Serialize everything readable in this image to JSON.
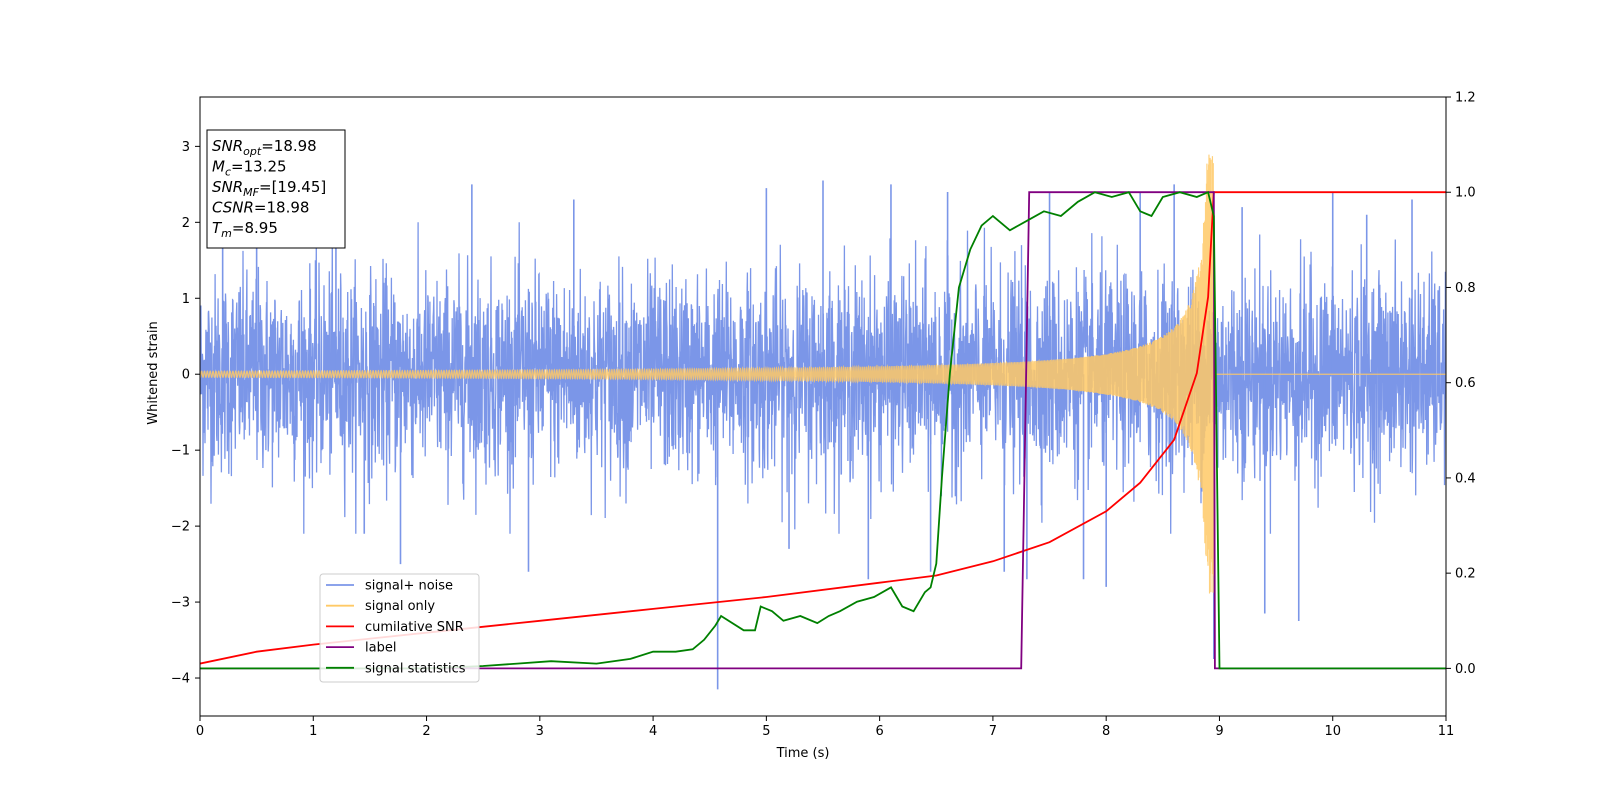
{
  "chart_data": {
    "type": "line",
    "xlabel": "Time (s)",
    "ylabel": "Whitened strain",
    "xlim": [
      0,
      11
    ],
    "ylim_left": [
      -4.5,
      3.65
    ],
    "ylim_right": [
      -0.1,
      1.2
    ],
    "x_ticks": [
      0,
      1,
      2,
      3,
      4,
      5,
      6,
      7,
      8,
      9,
      10,
      11
    ],
    "y_ticks_left": [
      -4,
      -3,
      -2,
      -1,
      0,
      1,
      2,
      3
    ],
    "y_ticks_left_labels": [
      "−4",
      "−3",
      "−2",
      "−1",
      "0",
      "1",
      "2",
      "3"
    ],
    "y_ticks_right": [
      0.0,
      0.2,
      0.4,
      0.6,
      0.8,
      1.0,
      1.2
    ],
    "y_ticks_right_labels": [
      "0.0",
      "0.2",
      "0.4",
      "0.6",
      "0.8",
      "1.0",
      "1.2"
    ],
    "grid": false,
    "legend_position": "lower-left",
    "info_box": [
      {
        "base": "SNR",
        "sub": "opt",
        "value": "=18.98"
      },
      {
        "base": "M",
        "sub": "c",
        "value": "=13.25"
      },
      {
        "base": "SNR",
        "sub": "MF",
        "value": "=[19.45]"
      },
      {
        "base": "CSNR",
        "sub": "",
        "value": "=18.98"
      },
      {
        "base": "T",
        "sub": "m",
        "value": "=8.95"
      }
    ],
    "series": [
      {
        "name": "signal+ noise",
        "axis": "left",
        "color": "#7b96e8",
        "noise_sigma": 0.65,
        "spikes": [
          [
            0.2,
            1.9
          ],
          [
            0.5,
            2.0
          ],
          [
            1.2,
            2.2
          ],
          [
            1.45,
            -2.1
          ],
          [
            1.77,
            -2.5
          ],
          [
            2.4,
            2.5
          ],
          [
            2.9,
            -2.6
          ],
          [
            3.3,
            2.3
          ],
          [
            4.57,
            -4.15
          ],
          [
            5.0,
            2.45
          ],
          [
            5.2,
            -2.3
          ],
          [
            5.5,
            2.55
          ],
          [
            5.9,
            -2.7
          ],
          [
            6.1,
            2.5
          ],
          [
            6.45,
            -2.6
          ],
          [
            6.6,
            2.4
          ],
          [
            7.1,
            -2.6
          ],
          [
            7.3,
            -2.7
          ],
          [
            7.5,
            2.4
          ],
          [
            7.8,
            -2.7
          ],
          [
            8.0,
            -2.8
          ],
          [
            8.3,
            2.4
          ],
          [
            8.6,
            2.5
          ],
          [
            8.95,
            -3.75
          ],
          [
            9.2,
            2.2
          ],
          [
            9.4,
            -3.15
          ],
          [
            9.7,
            -3.25
          ],
          [
            10.0,
            2.4
          ],
          [
            10.3,
            2.1
          ],
          [
            10.7,
            2.3
          ]
        ]
      },
      {
        "name": "signal only",
        "axis": "left",
        "color": "#ffc966",
        "t_merge": 8.95,
        "amp_peak": 2.9,
        "amp_start": 0.04
      },
      {
        "name": "cumilative SNR",
        "axis": "right",
        "color": "#ff0000",
        "x": [
          0,
          0.5,
          1,
          2,
          3,
          4,
          5,
          6,
          6.5,
          7,
          7.5,
          8,
          8.3,
          8.6,
          8.8,
          8.9,
          8.95,
          11
        ],
        "y": [
          0.01,
          0.035,
          0.05,
          0.075,
          0.1,
          0.125,
          0.15,
          0.18,
          0.195,
          0.225,
          0.265,
          0.33,
          0.39,
          0.48,
          0.62,
          0.78,
          1.0,
          1.0
        ]
      },
      {
        "name": "label",
        "axis": "right",
        "color": "#800080",
        "x": [
          0,
          7.25,
          7.32,
          8.95,
          8.96,
          11
        ],
        "y": [
          0.0,
          0.0,
          1.0,
          1.0,
          0.0,
          0.0
        ]
      },
      {
        "name": "signal statistics",
        "axis": "right",
        "color": "#008000",
        "x": [
          0,
          2.0,
          2.5,
          2.8,
          3.1,
          3.5,
          3.8,
          4.0,
          4.2,
          4.35,
          4.45,
          4.55,
          4.6,
          4.8,
          4.9,
          4.95,
          5.05,
          5.15,
          5.3,
          5.45,
          5.55,
          5.65,
          5.8,
          5.95,
          6.1,
          6.2,
          6.3,
          6.4,
          6.45,
          6.5,
          6.55,
          6.62,
          6.7,
          6.8,
          6.9,
          7.0,
          7.15,
          7.3,
          7.45,
          7.6,
          7.75,
          7.9,
          8.05,
          8.2,
          8.3,
          8.4,
          8.5,
          8.65,
          8.8,
          8.9,
          8.95,
          9.0,
          11
        ],
        "y": [
          0.0,
          0.0,
          0.005,
          0.01,
          0.015,
          0.01,
          0.02,
          0.035,
          0.035,
          0.04,
          0.06,
          0.09,
          0.11,
          0.08,
          0.08,
          0.13,
          0.12,
          0.1,
          0.11,
          0.095,
          0.11,
          0.12,
          0.14,
          0.15,
          0.17,
          0.13,
          0.12,
          0.16,
          0.17,
          0.22,
          0.4,
          0.62,
          0.8,
          0.88,
          0.93,
          0.95,
          0.92,
          0.94,
          0.96,
          0.95,
          0.98,
          1.0,
          0.99,
          1.0,
          0.96,
          0.95,
          0.99,
          1.0,
          0.99,
          1.0,
          0.95,
          0.0,
          0.0
        ]
      }
    ]
  }
}
